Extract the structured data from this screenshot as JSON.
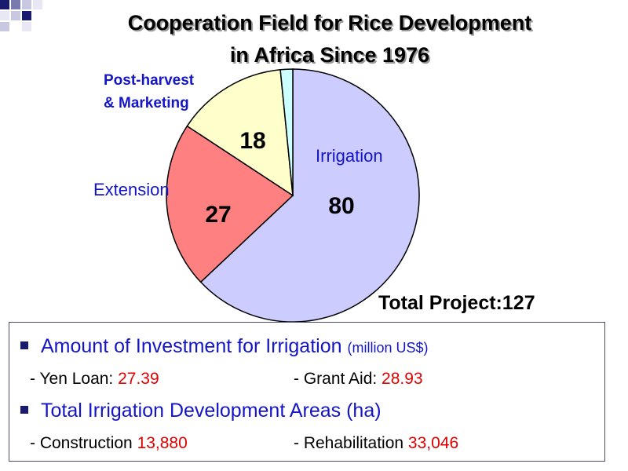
{
  "colors": {
    "irrigation": "#ccccff",
    "extension": "#ff8080",
    "post_harvest": "#ffffcc",
    "other": "#ccffff",
    "label_blue": "#1515c8",
    "value_red": "#e00000",
    "corner_navy": "#1a1a6e"
  },
  "chart_data": {
    "type": "pie",
    "title_line1": "Cooperation Field for Rice Development",
    "title_line2": "in Africa Since 1976",
    "total_label": "Total Project:127",
    "slices": [
      {
        "name": "Irrigation",
        "value": 80,
        "value_label": "80",
        "color": "#ccccff"
      },
      {
        "name": "Extension",
        "value": 27,
        "value_label": "27",
        "color": "#ff8080"
      },
      {
        "name": "Post-harvest & Marketing",
        "name_line1": "Post-harvest",
        "name_line2": "& Marketing",
        "value": 18,
        "value_label": "18",
        "color": "#ffffcc"
      },
      {
        "name": "",
        "value": 2,
        "value_label": "",
        "color": "#ccffff"
      }
    ]
  },
  "info": {
    "investment": {
      "heading": "Amount of Investment for Irrigation",
      "unit": "(million US$)",
      "items": [
        {
          "label": "- Yen Loan: ",
          "value": "27.39"
        },
        {
          "label": "- Grant Aid: ",
          "value": "28.93"
        }
      ]
    },
    "areas": {
      "heading": "Total Irrigation Development Areas (ha)",
      "items": [
        {
          "label": "- Construction ",
          "value": "13,880"
        },
        {
          "label": "- Rehabilitation ",
          "value": "33,046"
        }
      ]
    }
  }
}
